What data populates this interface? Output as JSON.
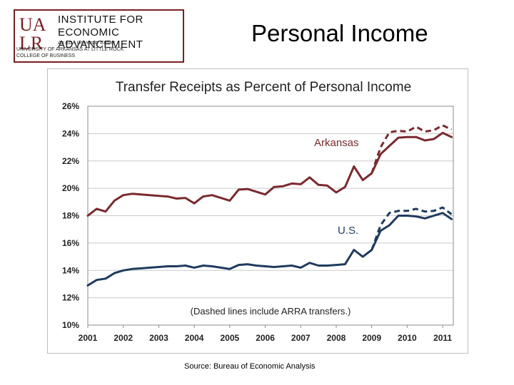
{
  "logo": {
    "mark": "UALR",
    "line1": "INSTITUTE FOR",
    "line2": "ECONOMIC ADVANCEMENT",
    "line3": "An EDA University Center",
    "line4": "UNIVERSITY OF ARKANSAS AT LITTLE ROCK",
    "line5": "COLLEGE OF BUSINESS",
    "color": "#7a1f24"
  },
  "page_title": "Personal Income",
  "source": "Source:  Bureau of Economic Analysis",
  "chart_data": {
    "type": "line",
    "title": "Transfer Receipts as Percent of Personal Income",
    "xlabel": "",
    "ylabel": "",
    "xlim": [
      2001,
      2011.3
    ],
    "ylim": [
      10,
      26
    ],
    "x_ticks": [
      "2001",
      "2002",
      "2003",
      "2004",
      "2005",
      "2006",
      "2007",
      "2008",
      "2009",
      "2010",
      "2011"
    ],
    "y_ticks": [
      "10%",
      "12%",
      "14%",
      "16%",
      "18%",
      "20%",
      "22%",
      "24%",
      "26%"
    ],
    "grid": true,
    "annotation": "(Dashed lines include ARRA transfers.)",
    "series": [
      {
        "name": "Arkansas",
        "color": "#7a2a2e",
        "style": "solid",
        "x": [
          2001,
          2001.25,
          2001.5,
          2001.75,
          2002,
          2002.25,
          2002.5,
          2002.75,
          2003,
          2003.25,
          2003.5,
          2003.75,
          2004,
          2004.25,
          2004.5,
          2004.75,
          2005,
          2005.25,
          2005.5,
          2005.75,
          2006,
          2006.25,
          2006.5,
          2006.75,
          2007,
          2007.25,
          2007.5,
          2007.75,
          2008,
          2008.25,
          2008.5,
          2008.75,
          2009,
          2009.25,
          2009.5,
          2009.75,
          2010,
          2010.25,
          2010.5,
          2010.75,
          2011,
          2011.25
        ],
        "y": [
          18.0,
          18.5,
          18.3,
          19.1,
          19.5,
          19.6,
          19.55,
          19.5,
          19.45,
          19.4,
          19.25,
          19.3,
          18.9,
          19.4,
          19.5,
          19.3,
          19.1,
          19.9,
          19.95,
          19.75,
          19.55,
          20.1,
          20.15,
          20.35,
          20.3,
          20.8,
          20.25,
          20.2,
          19.7,
          20.1,
          21.6,
          20.6,
          21.1,
          22.5,
          23.1,
          23.7,
          23.75,
          23.75,
          23.5,
          23.6,
          24.05,
          23.75
        ]
      },
      {
        "name": "U.S.",
        "color": "#1f3a5f",
        "style": "solid",
        "x": [
          2001,
          2001.25,
          2001.5,
          2001.75,
          2002,
          2002.25,
          2002.5,
          2002.75,
          2003,
          2003.25,
          2003.5,
          2003.75,
          2004,
          2004.25,
          2004.5,
          2004.75,
          2005,
          2005.25,
          2005.5,
          2005.75,
          2006,
          2006.25,
          2006.5,
          2006.75,
          2007,
          2007.25,
          2007.5,
          2007.75,
          2008,
          2008.25,
          2008.5,
          2008.75,
          2009,
          2009.25,
          2009.5,
          2009.75,
          2010,
          2010.25,
          2010.5,
          2010.75,
          2011,
          2011.25
        ],
        "y": [
          12.9,
          13.3,
          13.4,
          13.8,
          14.0,
          14.1,
          14.15,
          14.2,
          14.25,
          14.3,
          14.3,
          14.35,
          14.2,
          14.35,
          14.3,
          14.2,
          14.1,
          14.4,
          14.45,
          14.35,
          14.3,
          14.25,
          14.3,
          14.35,
          14.2,
          14.55,
          14.35,
          14.35,
          14.4,
          14.45,
          15.5,
          15.0,
          15.5,
          16.9,
          17.3,
          18.0,
          18.0,
          17.95,
          17.8,
          18.0,
          18.2,
          17.75
        ]
      },
      {
        "name": "Arkansas (incl. ARRA)",
        "color": "#7a2a2e",
        "style": "dashed",
        "x": [
          2009,
          2009.25,
          2009.5,
          2009.75,
          2010,
          2010.25,
          2010.5,
          2010.75,
          2011,
          2011.25
        ],
        "y": [
          21.1,
          23.0,
          24.1,
          24.2,
          24.15,
          24.5,
          24.15,
          24.25,
          24.6,
          24.3
        ]
      },
      {
        "name": "U.S. (incl. ARRA)",
        "color": "#1f3a5f",
        "style": "dashed",
        "x": [
          2009,
          2009.25,
          2009.5,
          2009.75,
          2010,
          2010.25,
          2010.5,
          2010.75,
          2011,
          2011.25
        ],
        "y": [
          15.5,
          17.3,
          18.2,
          18.35,
          18.35,
          18.5,
          18.3,
          18.35,
          18.6,
          18.1
        ]
      }
    ],
    "labels": [
      {
        "text": "Arkansas",
        "color": "#7a2a2e"
      },
      {
        "text": "U.S.",
        "color": "#1f3a5f"
      }
    ]
  }
}
